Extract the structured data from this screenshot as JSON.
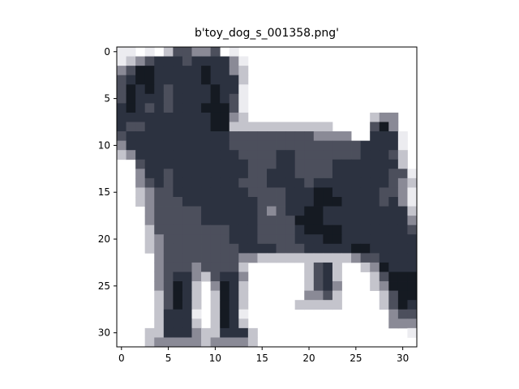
{
  "figure": {
    "title": "b'toy_dog_s_001358.png'"
  },
  "axes": {
    "x_ticks": [
      "0",
      "5",
      "10",
      "15",
      "20",
      "25",
      "30"
    ],
    "y_ticks": [
      "0",
      "5",
      "10",
      "15",
      "20",
      "25",
      "30"
    ],
    "x_range": [
      -0.5,
      31.5
    ],
    "y_range": [
      -0.5,
      31.5
    ],
    "y_inverted": true
  },
  "image": {
    "subject": "black toy dog standing, facing left, on white background",
    "resolution": [
      32,
      32
    ]
  },
  "colors": {
    "background": "#ffffff",
    "dog_dark": "#1e2530",
    "dog_mid": "#3a3f4c",
    "dog_light": "#5a5c68"
  }
}
